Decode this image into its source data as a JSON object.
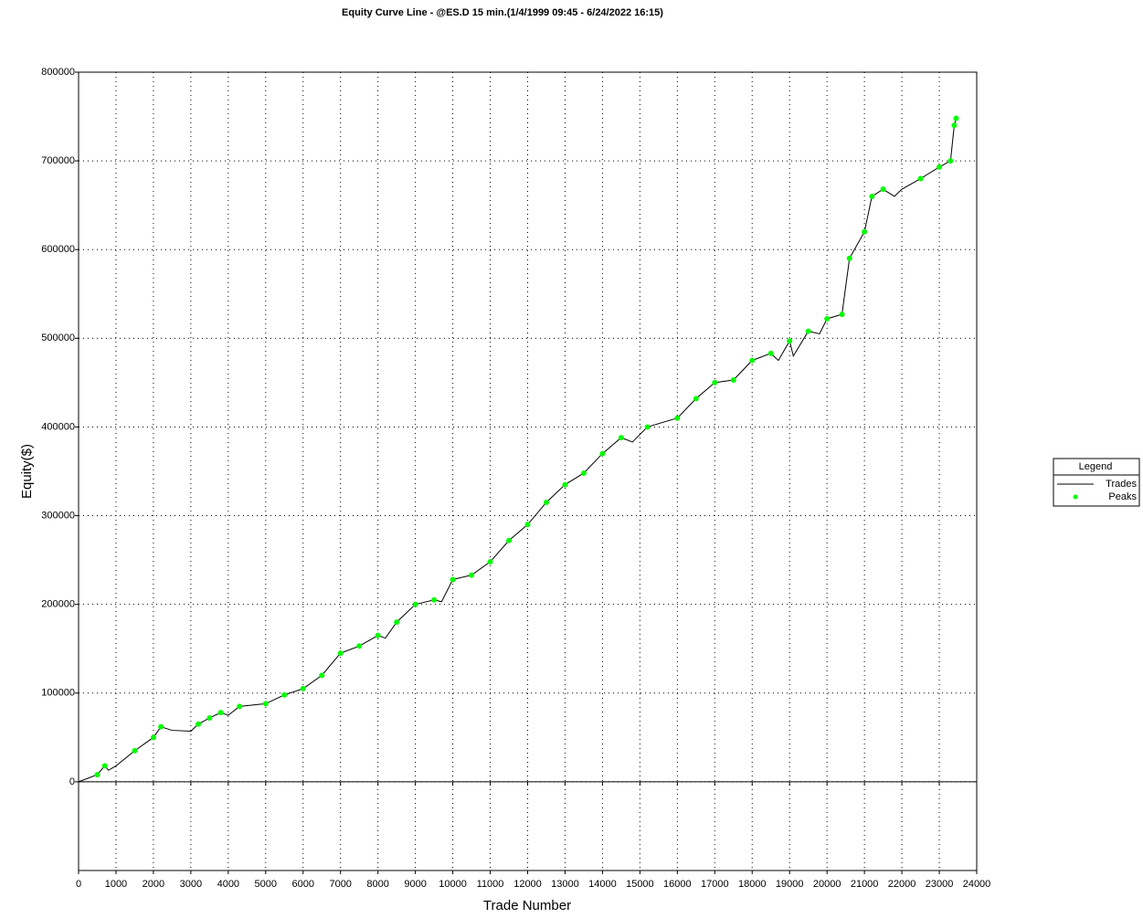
{
  "chart_data": {
    "type": "line",
    "title": "Equity Curve Line - @ES.D 15 min.(1/4/1999 09:45 - 6/24/2022 16:15)",
    "x_label": "Trade Number",
    "y_label": "Equity($)",
    "legend_title": "Legend",
    "legend_position": "right",
    "grid": true,
    "xlim": [
      0,
      24000
    ],
    "xticks": [
      0,
      1000,
      2000,
      3000,
      4000,
      5000,
      6000,
      7000,
      8000,
      9000,
      10000,
      11000,
      12000,
      13000,
      14000,
      15000,
      16000,
      17000,
      18000,
      19000,
      20000,
      21000,
      22000,
      23000,
      24000
    ],
    "ylim": [
      -100000,
      800000
    ],
    "yticks": [
      0,
      100000,
      200000,
      300000,
      400000,
      500000,
      600000,
      700000,
      800000
    ],
    "series": [
      {
        "name": "Trades",
        "color": "#000000",
        "x": [
          0,
          500,
          700,
          800,
          1000,
          1500,
          2000,
          2200,
          2500,
          3000,
          3200,
          3500,
          3800,
          4000,
          4300,
          5000,
          5500,
          6000,
          6500,
          7000,
          7500,
          8000,
          8200,
          8500,
          9000,
          9500,
          9700,
          10000,
          10500,
          11000,
          11500,
          12000,
          12500,
          13000,
          13500,
          14000,
          14500,
          14800,
          15200,
          16000,
          16500,
          17000,
          17500,
          18000,
          18500,
          18700,
          19000,
          19100,
          19500,
          19800,
          20000,
          20400,
          20600,
          21000,
          21200,
          21500,
          21800,
          22000,
          22500,
          23000,
          23300,
          23400,
          23450
        ],
        "values": [
          0,
          8000,
          18000,
          13000,
          18000,
          35000,
          50000,
          62000,
          58000,
          57000,
          65000,
          72000,
          78000,
          75000,
          85000,
          88000,
          98000,
          105000,
          120000,
          145000,
          153000,
          165000,
          162000,
          180000,
          200000,
          205000,
          203000,
          228000,
          233000,
          248000,
          272000,
          290000,
          315000,
          335000,
          348000,
          370000,
          388000,
          383000,
          400000,
          410000,
          432000,
          450000,
          453000,
          475000,
          483000,
          475000,
          497000,
          480000,
          508000,
          505000,
          522000,
          527000,
          590000,
          620000,
          660000,
          668000,
          660000,
          668000,
          680000,
          693000,
          700000,
          740000,
          748000
        ]
      },
      {
        "name": "Peaks",
        "color": "#00ff00",
        "marker": "dot",
        "x": [
          500,
          700,
          1500,
          2000,
          2200,
          3200,
          3500,
          3800,
          4300,
          5000,
          5500,
          6000,
          6500,
          7000,
          7500,
          8000,
          8500,
          9000,
          9500,
          10000,
          10500,
          11000,
          11500,
          12000,
          12500,
          13000,
          13500,
          14000,
          14500,
          15200,
          16000,
          16500,
          17000,
          17500,
          18000,
          18500,
          19000,
          19500,
          20000,
          20400,
          20600,
          21000,
          21200,
          21500,
          22500,
          23000,
          23300,
          23400,
          23450
        ],
        "values": [
          8000,
          18000,
          35000,
          50000,
          62000,
          65000,
          72000,
          78000,
          85000,
          88000,
          98000,
          105000,
          120000,
          145000,
          153000,
          165000,
          180000,
          200000,
          205000,
          228000,
          233000,
          248000,
          272000,
          290000,
          315000,
          335000,
          348000,
          370000,
          388000,
          400000,
          410000,
          432000,
          450000,
          453000,
          475000,
          483000,
          497000,
          508000,
          522000,
          527000,
          590000,
          620000,
          660000,
          668000,
          680000,
          693000,
          700000,
          740000,
          748000
        ]
      }
    ]
  }
}
